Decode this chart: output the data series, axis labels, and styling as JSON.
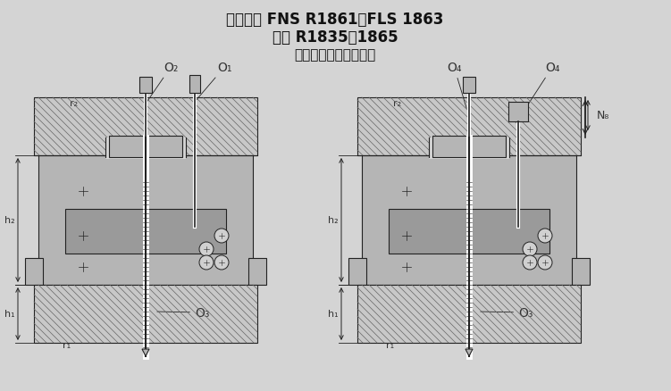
{
  "title_line1": "重载滑块 FNS R1861，FLS 1863",
  "title_line2": "导轨 R1835，1865",
  "title_line3": "（从上面用螺栓安装）",
  "bg_color": "#d4d4d4",
  "hatch_color": "#555555",
  "body_color": "#b0b0b0",
  "dark_color": "#808080",
  "line_color": "#222222",
  "title_color": "#111111",
  "label_color": "#333333"
}
